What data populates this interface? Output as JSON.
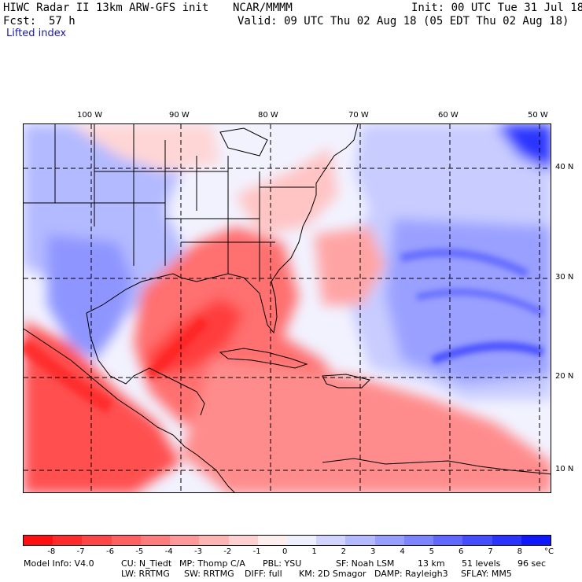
{
  "header": {
    "model": "HIWC Radar II 13km ARW-GFS init",
    "org": "NCAR/MMMM",
    "init": "Init: 00 UTC Tue 31 Jul 18",
    "fcst_label": "Fcst:",
    "fcst_value": "57 h",
    "valid": "Valid: 09 UTC Thu 02 Aug 18 (05 EDT Thu 02 Aug 18)",
    "field": "Lifted index"
  },
  "map": {
    "lon_labels": [
      "100 W",
      "90 W",
      "80 W",
      "70 W",
      "60 W",
      "50 W"
    ],
    "lat_labels": [
      "40 N",
      "30 N",
      "20 N",
      "10 N"
    ]
  },
  "colorbar": {
    "ticks": [
      "-8",
      "-7",
      "-6",
      "-5",
      "-4",
      "-3",
      "-2",
      "-1",
      "0",
      "1",
      "2",
      "3",
      "4",
      "5",
      "6",
      "7",
      "8"
    ],
    "unit": "°C",
    "colors": [
      "#ff1010",
      "#ff2a2a",
      "#ff4646",
      "#ff6060",
      "#ff7c7c",
      "#ff9898",
      "#ffb4b4",
      "#ffd0d0",
      "#ffeeee",
      "#eef0ff",
      "#d0d4ff",
      "#b4baff",
      "#989eff",
      "#7c84ff",
      "#6068ff",
      "#444eff",
      "#2a34ff",
      "#1018ff"
    ]
  },
  "footer": {
    "line1_a": "Model Info: V4.0",
    "line1_b": "CU: N_Tiedt",
    "line1_c": "MP: Thomp C/A",
    "line1_d": "PBL: YSU",
    "line1_e": "SF: Noah LSM",
    "line1_f": "13 km",
    "line1_g": "51 levels",
    "line1_h": "96 sec",
    "line2_a": "LW: RRTMG",
    "line2_b": "SW: RRTMG",
    "line2_c": "DIFF: full",
    "line2_d": "KM: 2D Smagor",
    "line2_e": "DAMP: Rayleigh3",
    "line2_f": "SFLAY: MM5"
  }
}
